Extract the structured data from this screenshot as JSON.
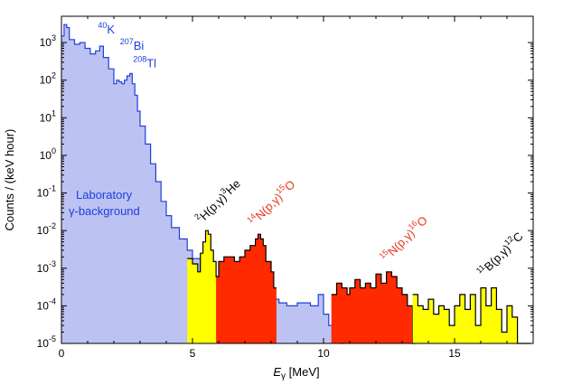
{
  "chart_data": {
    "type": "area",
    "xlabel": "E",
    "xlabel_subscript": "γ",
    "xlabel_unit": "[MeV]",
    "ylabel": "Counts / (keV hour)",
    "xlim": [
      0,
      18
    ],
    "ylim": [
      1e-05,
      5000
    ],
    "yscale": "log",
    "grid": false,
    "x_ticks": [
      0,
      5,
      10,
      15
    ],
    "x_tick_labels": [
      "0",
      "5",
      "10",
      "15"
    ],
    "y_ticks": [
      1e-05,
      0.0001,
      0.001,
      0.01,
      0.1,
      1,
      10,
      100,
      1000
    ],
    "y_tick_labels": [
      {
        "base": "10",
        "exp": "-5"
      },
      {
        "base": "10",
        "exp": "-4"
      },
      {
        "base": "10",
        "exp": "-3"
      },
      {
        "base": "10",
        "exp": "-2"
      },
      {
        "base": "10",
        "exp": "-1"
      },
      {
        "base": "10",
        "exp": "0"
      },
      {
        "base": "10",
        "exp": "1"
      },
      {
        "base": "10",
        "exp": "2"
      },
      {
        "base": "10",
        "exp": "3"
      }
    ],
    "series": [
      {
        "name": "Laboratory γ-background",
        "label_lines": [
          "Laboratory",
          "γ-background"
        ],
        "fill": "#bcc2f2",
        "line": "#1f3fdc",
        "x": [
          0.0,
          0.1,
          0.2,
          0.3,
          0.5,
          0.7,
          0.9,
          1.1,
          1.3,
          1.46,
          1.6,
          1.8,
          2.0,
          2.1,
          2.2,
          2.3,
          2.4,
          2.5,
          2.61,
          2.7,
          2.8,
          2.9,
          3.0,
          3.2,
          3.4,
          3.6,
          3.8,
          4.0,
          4.2,
          4.5,
          4.8,
          5.0,
          5.3,
          5.6,
          5.8,
          6.0,
          6.5,
          7.0,
          7.5,
          7.8,
          8.0,
          8.3,
          8.6,
          9.0,
          9.5,
          9.8,
          10.0,
          10.2,
          10.5,
          10.7
        ],
        "y": [
          1500,
          3000,
          2500,
          1200,
          900,
          1000,
          700,
          500,
          600,
          800,
          400,
          200,
          80,
          100,
          90,
          80,
          100,
          130,
          150,
          80,
          40,
          15,
          6,
          2,
          0.6,
          0.2,
          0.06,
          0.025,
          0.012,
          0.006,
          0.003,
          0.0018,
          0.0008,
          0.0007,
          0.0005,
          0.0004,
          0.00035,
          0.0004,
          0.00035,
          0.0003,
          0.00015,
          0.00012,
          0.0001,
          0.00012,
          0.0001,
          0.0002,
          6e-05,
          3e-05,
          2e-05,
          1e-05
        ]
      },
      {
        "name": "2H(p,γ)3He",
        "label": {
          "pre": "2",
          "main1": "H(p,γ)",
          "sup2": "3",
          "main2": "He"
        },
        "fill": "#ffff00",
        "x": [
          4.8,
          5.0,
          5.2,
          5.3,
          5.4,
          5.5,
          5.6,
          5.7,
          5.8,
          5.9,
          6.0
        ],
        "y": [
          0.0018,
          0.0013,
          0.0008,
          0.0025,
          0.005,
          0.01,
          0.008,
          0.003,
          0.0015,
          0.0006,
          0.0005
        ]
      },
      {
        "name": "14N(p,γ)15O",
        "label": {
          "pre": "14",
          "main1": "N(p,γ)",
          "sup2": "15",
          "main2": "O"
        },
        "fill": "#ff2a00",
        "x": [
          5.9,
          6.0,
          6.2,
          6.4,
          6.6,
          6.8,
          7.0,
          7.2,
          7.4,
          7.5,
          7.6,
          7.7,
          7.8,
          8.0,
          8.1
        ],
        "y": [
          0.0006,
          0.0015,
          0.002,
          0.002,
          0.0015,
          0.002,
          0.003,
          0.004,
          0.006,
          0.008,
          0.006,
          0.004,
          0.0015,
          0.0008,
          0.0003
        ]
      },
      {
        "name": "15N(p,γ)16O",
        "label": {
          "pre": "15",
          "main1": "N(p,γ)",
          "sup2": "16",
          "main2": "O"
        },
        "fill": "#ff2a00",
        "x": [
          10.3,
          10.5,
          10.7,
          10.9,
          11.0,
          11.2,
          11.4,
          11.6,
          11.8,
          12.0,
          12.2,
          12.4,
          12.6,
          12.8,
          13.0,
          13.2,
          13.4
        ],
        "y": [
          0.0002,
          0.0004,
          0.0003,
          0.0002,
          0.0003,
          0.0005,
          0.0003,
          0.0004,
          0.0003,
          0.0007,
          0.0004,
          0.0008,
          0.0006,
          0.0003,
          0.0002,
          0.0001,
          1e-05
        ]
      },
      {
        "name": "11B(p,γ)12C",
        "label": {
          "pre": "11",
          "main1": "B(p,γ)",
          "sup2": "12",
          "main2": "C"
        },
        "fill": "#ffff00",
        "x": [
          13.4,
          13.6,
          13.8,
          14.0,
          14.2,
          14.4,
          14.6,
          14.8,
          15.0,
          15.2,
          15.4,
          15.6,
          15.8,
          16.0,
          16.2,
          16.4,
          16.6,
          16.8,
          17.0,
          17.2,
          17.4,
          17.6,
          17.8
        ],
        "y": [
          0.0002,
          0.0001,
          8e-05,
          0.00015,
          6e-05,
          0.0001,
          8e-05,
          3e-05,
          0.0001,
          0.0002,
          8e-05,
          0.0002,
          3e-05,
          0.0003,
          0.0001,
          0.0003,
          8e-05,
          2e-05,
          0.0001,
          5e-05,
          1e-05,
          1e-05,
          1e-05
        ]
      }
    ],
    "annotations": [
      {
        "id": "k40",
        "sup": "40",
        "text": "K",
        "x": 1.46,
        "y": 800,
        "color": "#1f3fdc"
      },
      {
        "id": "bi207",
        "sup": "207",
        "text": "Bi",
        "x": 2.3,
        "y": 300,
        "color": "#1f3fdc"
      },
      {
        "id": "tl208",
        "sup": "208",
        "text": "Tl",
        "x": 2.8,
        "y": 100,
        "color": "#1f3fdc"
      }
    ],
    "colors": {
      "background_fill": "#bcc2f2",
      "background_line": "#1f3fdc",
      "yellow": "#ffff00",
      "red": "#ff2a00",
      "red_label": "#e8351e"
    }
  }
}
